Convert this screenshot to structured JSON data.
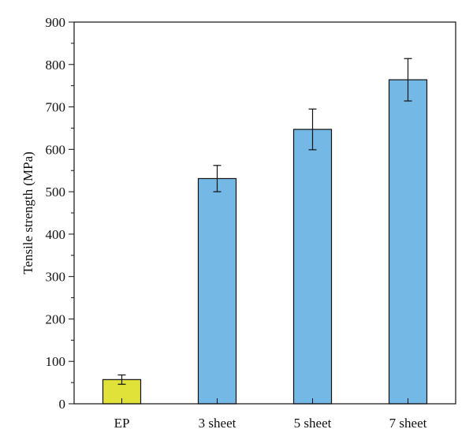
{
  "chart_data": {
    "type": "bar",
    "title": "",
    "xlabel": "",
    "ylabel": "Tensile strength (MPa)",
    "ylim": [
      0,
      900
    ],
    "yticks": [
      0,
      100,
      200,
      300,
      400,
      500,
      600,
      700,
      800,
      900
    ],
    "grid": false,
    "categories": [
      "EP",
      "3 sheet",
      "5 sheet",
      "7 sheet"
    ],
    "values": [
      57,
      531,
      647,
      764
    ],
    "errors": [
      11,
      31,
      48,
      50
    ],
    "bar_colors": [
      "#e0e23a",
      "#74b8e6",
      "#74b8e6",
      "#74b8e6"
    ]
  }
}
